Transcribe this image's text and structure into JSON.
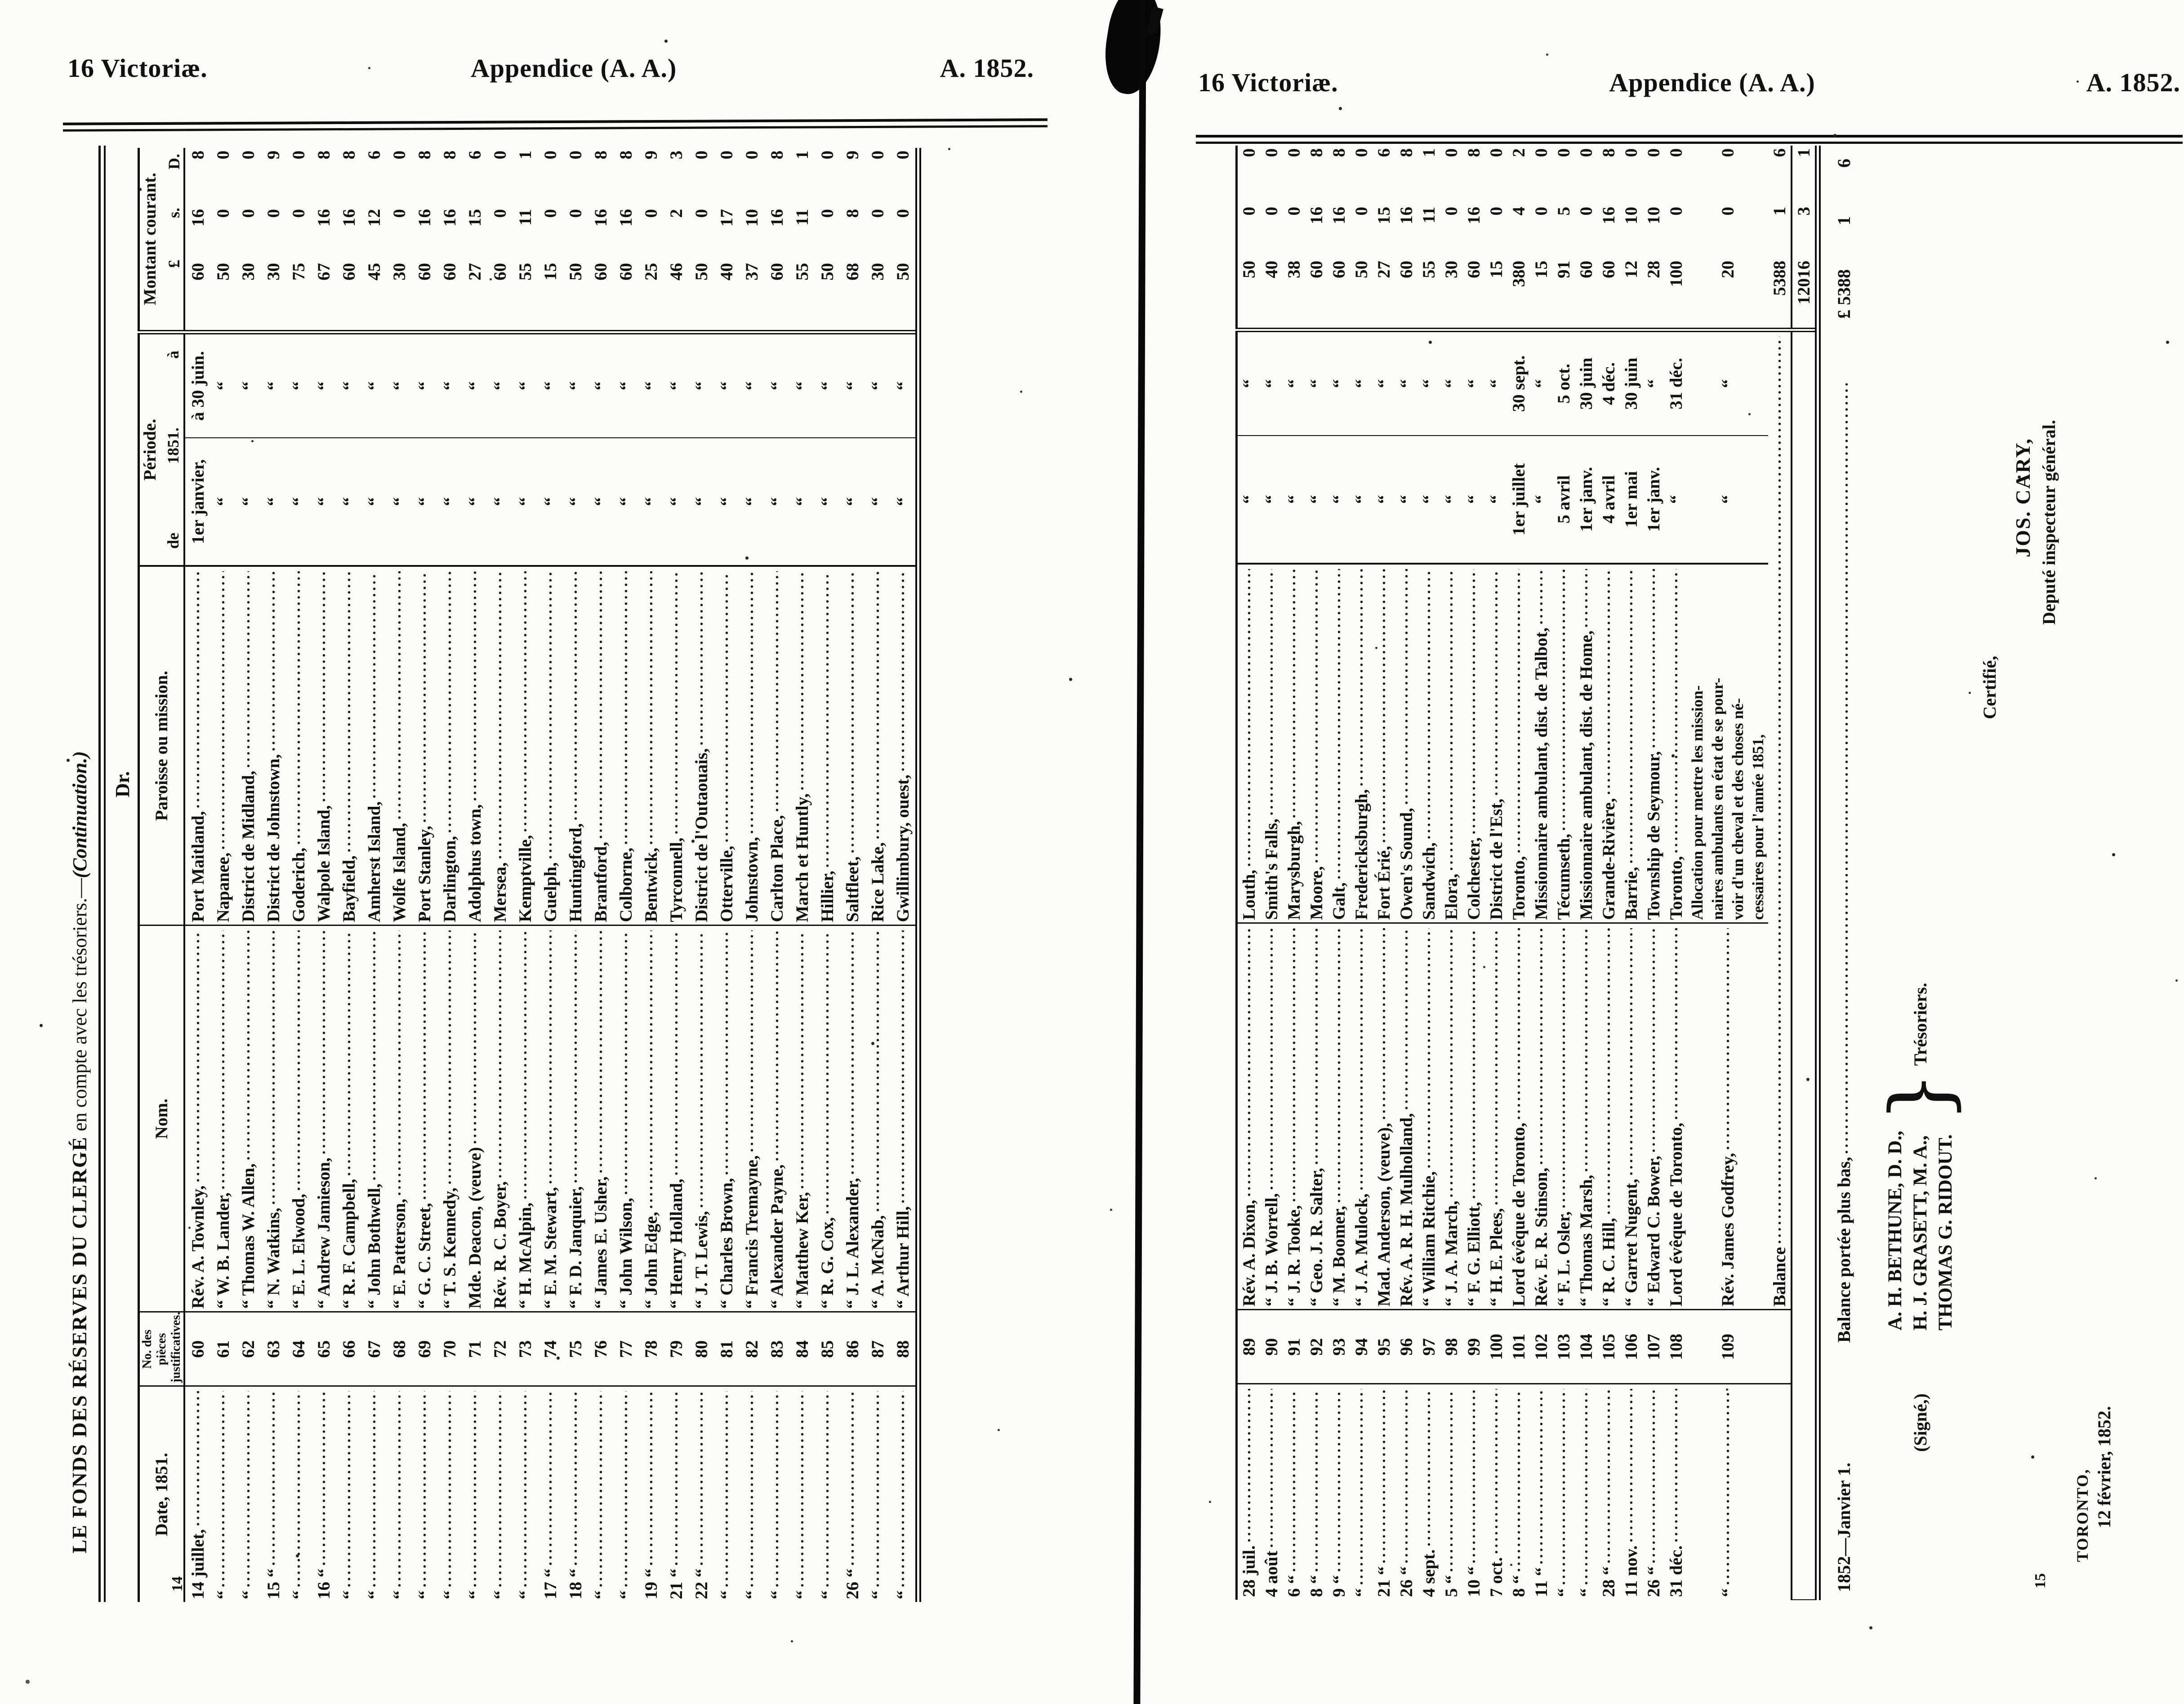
{
  "running_head": {
    "victoriae": "16 Victoriæ.",
    "appendice": "Appendice (A. A.)",
    "year": "A. 1852."
  },
  "left_page": {
    "page_number": "14",
    "caption": {
      "main": "LE FONDS DES RÉSERVES DU CLERGÉ",
      "rest": " en compte avec les trésoriers.—",
      "continuation": "(Continuation.)"
    },
    "dr_label": "Dr.",
    "columns": {
      "date": "Date, 1851.",
      "no_line1": "No. des",
      "no_line2": "pièces",
      "no_line3": "justificatives.",
      "nom": "Nom.",
      "paroisse": "Paroisse ou mission.",
      "periode": "Période.",
      "periode_year": "1851.",
      "de": "de",
      "a": "à",
      "montant": "Montant courant.",
      "pounds": "£",
      "shillings": "s.",
      "pence": "D."
    },
    "rows": [
      [
        "14 juillet,",
        "60",
        "Rév. A. Townley,",
        "Port Maitland,",
        "1er janvier,",
        "à 30 juin.",
        "60",
        "16",
        "8"
      ],
      [
        "“",
        "61",
        "“ W. B. Lander,",
        "Napanee,",
        "“",
        "“",
        "50",
        "0",
        "0"
      ],
      [
        "“",
        "62",
        "“ Thomas W. Allen,",
        "District de Midland,",
        "“",
        "“",
        "30",
        "0",
        "0"
      ],
      [
        "15 “",
        "63",
        "“ N. Watkins,",
        "District de Johnstown,",
        "“",
        "“",
        "30",
        "0",
        "9"
      ],
      [
        "“",
        "64",
        "“ E. L. Elwood,",
        "Goderich,",
        "“",
        "“",
        "75",
        "0",
        "0"
      ],
      [
        "16 “",
        "65",
        "“ Andrew Jamieson,",
        "Walpole Island,",
        "“",
        "“",
        "67",
        "16",
        "8"
      ],
      [
        "“",
        "66",
        "“ R. F. Campbell,",
        "Bayfield,",
        "“",
        "“",
        "60",
        "16",
        "8"
      ],
      [
        "“",
        "67",
        "“ John Bothwell,",
        "Amherst Island,",
        "“",
        "“",
        "45",
        "12",
        "6"
      ],
      [
        "“",
        "68",
        "“ E. Patterson,",
        "Wolfe Island,",
        "“",
        "“",
        "30",
        "0",
        "0"
      ],
      [
        "“",
        "69",
        "“ G. C. Street,",
        "Port Stanley,",
        "“",
        "“",
        "60",
        "16",
        "8"
      ],
      [
        "“",
        "70",
        "“ T. S. Kennedy,",
        "Darlington,",
        "“",
        "“",
        "60",
        "16",
        "8"
      ],
      [
        "“",
        "71",
        "Mde. Deacon, (veuve)",
        "Adolphus town,",
        "“",
        "“",
        "27",
        "15",
        "6"
      ],
      [
        "“",
        "72",
        "Rév. R. C. Boyer,",
        "Mersea,",
        "“",
        "“",
        "60",
        "0",
        "0"
      ],
      [
        "“",
        "73",
        "“ H. McAlpin,",
        "Kemptville,",
        "“",
        "“",
        "55",
        "11",
        "1"
      ],
      [
        "17 “",
        "74",
        "“ E. M. Stewart,",
        "Guelph,",
        "“",
        "“",
        "15",
        "0",
        "0"
      ],
      [
        "18 “",
        "75",
        "“ F. D. Janquier,",
        "Huntingford,",
        "“",
        "“",
        "50",
        "0",
        "0"
      ],
      [
        "“",
        "76",
        "“ James E. Usher,",
        "Brantford,",
        "“",
        "“",
        "60",
        "16",
        "8"
      ],
      [
        "“",
        "77",
        "“ John Wilson,",
        "Colborne,",
        "“",
        "“",
        "60",
        "16",
        "8"
      ],
      [
        "19 “",
        "78",
        "“ John Edge,",
        "Bentwick,",
        "“",
        "“",
        "25",
        "0",
        "9"
      ],
      [
        "21 “",
        "79",
        "“ Henry Holland,",
        "Tyrconnell,",
        "“",
        "“",
        "46",
        "2",
        "3"
      ],
      [
        "22 “",
        "80",
        "“ J. T. Lewis,",
        "District de l'Outaouais,",
        "“",
        "“",
        "50",
        "0",
        "0"
      ],
      [
        "“",
        "81",
        "“ Charles Brown,",
        "Otterville,",
        "“",
        "“",
        "40",
        "17",
        "0"
      ],
      [
        "“",
        "82",
        "“ Francis Tremayne,",
        "Johnstown,",
        "“",
        "“",
        "37",
        "10",
        "0"
      ],
      [
        "“",
        "83",
        "“ Alexander Payne,",
        "Carlton Place,",
        "“",
        "“",
        "60",
        "16",
        "8"
      ],
      [
        "“",
        "84",
        "“ Matthew Ker,",
        "March et Huntly,",
        "“",
        "“",
        "55",
        "11",
        "1"
      ],
      [
        "“",
        "85",
        "“ R. G. Cox,",
        "Hillier,",
        "“",
        "“",
        "50",
        "0",
        "0"
      ],
      [
        "26 “",
        "86",
        "“ J. L. Alexander,",
        "Saltfleet,",
        "“",
        "“",
        "68",
        "8",
        "9"
      ],
      [
        "“",
        "87",
        "“ A. McNab,",
        "Rice Lake,",
        "“",
        "“",
        "30",
        "0",
        "0"
      ],
      [
        "“",
        "88",
        "“ Arthur Hill,",
        "Gwillimbury, ouest,",
        "“",
        "“",
        "50",
        "0",
        "0"
      ]
    ]
  },
  "right_page": {
    "page_number": "15",
    "rows": [
      [
        "28 juil.",
        "89",
        "Rév. A. Dixon,",
        "Louth,",
        "“",
        "“",
        "50",
        "0",
        "0"
      ],
      [
        "4 août",
        "90",
        "“ J. B. Worrell,",
        "Smith's Falls,",
        "“",
        "“",
        "40",
        "0",
        "0"
      ],
      [
        "6 “",
        "91",
        "“ J. R. Tooke,",
        "Marysburgh,",
        "“",
        "“",
        "38",
        "0",
        "0"
      ],
      [
        "8 “",
        "92",
        "“ Geo. J. R. Salter,",
        "Moore,",
        "“",
        "“",
        "60",
        "16",
        "8"
      ],
      [
        "9 “",
        "93",
        "“ M. Boomer,",
        "Galt,",
        "“",
        "“",
        "60",
        "16",
        "8"
      ],
      [
        "“",
        "94",
        "“ J. A. Mulock,",
        "Fredericksburgh,",
        "“",
        "“",
        "50",
        "0",
        "0"
      ],
      [
        "21 “",
        "95",
        "Mad. Anderson, (veuve),",
        "Fort Érié,",
        "“",
        "“",
        "27",
        "15",
        "6"
      ],
      [
        "26 “",
        "96",
        "Rév. A. R. H. Mulholland,",
        "Owen's Sound,",
        "“",
        "“",
        "60",
        "16",
        "8"
      ],
      [
        "4 sept.",
        "97",
        "“ William Ritchie,",
        "Sandwich,",
        "“",
        "“",
        "55",
        "11",
        "1"
      ],
      [
        "5 “",
        "98",
        "“ J. A. March,",
        "Elora,",
        "“",
        "“",
        "30",
        "0",
        "0"
      ],
      [
        "10 “",
        "99",
        "“ F. G. Elliott,",
        "Colchester,",
        "“",
        "“",
        "60",
        "16",
        "8"
      ],
      [
        "7 oct.",
        "100",
        "“ H. E. Plees,",
        "District de l'Est,",
        "“",
        "“",
        "15",
        "0",
        "0"
      ],
      [
        "8 “",
        "101",
        "Lord évêque de Toronto,",
        "Toronto,",
        "1er juillet",
        "30 sept.",
        "380",
        "4",
        "2"
      ],
      [
        "11 “",
        "102",
        "Rév. E. R. Stinson,",
        "Missionnaire ambulant, dist. de Talbot,",
        "“",
        "“",
        "15",
        "0",
        "0"
      ],
      [
        "“",
        "103",
        "“ F. L. Osler,",
        "Técumseth,",
        "5 avril",
        "5 oct.",
        "91",
        "5",
        "0"
      ],
      [
        "“",
        "104",
        "“ Thomas Marsh,",
        "Missionnaire ambulant, dist. de Home,",
        "1er janv.",
        "30 juin",
        "60",
        "0",
        "0"
      ],
      [
        "28 “",
        "105",
        "“ R. C. Hill,",
        "Grande-Rivière,",
        "4 avril",
        "4 déc.",
        "60",
        "16",
        "8"
      ],
      [
        "11 nov.",
        "106",
        "“ Garret Nugent,",
        "Barrie,",
        "1er mai",
        "30 juin",
        "12",
        "10",
        "0"
      ],
      [
        "26 “",
        "107",
        "“ Edward C. Bower,",
        "Township de Seymour,",
        "1er janv.",
        "“",
        "28",
        "10",
        "0"
      ],
      [
        "31 déc.",
        "108",
        "Lord évêque de Toronto,",
        "Toronto,",
        "“",
        "31 déc.",
        "100",
        "0",
        "0"
      ],
      [
        "“",
        "109",
        "Rév. James Godfrey,",
        [
          "Allocation pour mettre les mission-",
          "naires ambulants en état de se pour-",
          "voir d'un cheval et des choses né-",
          "cessaires pour l'année 1851,"
        ],
        "“",
        "“",
        "20",
        "0",
        "0"
      ]
    ],
    "balance_row": {
      "label": "Balance",
      "pounds": "5388",
      "shillings": "1",
      "pence": "6"
    },
    "total_row": {
      "pounds": "12016",
      "shillings": "3",
      "pence": "1"
    },
    "footer": {
      "balance_date": "1852—Janvier 1.",
      "balance_label": "Balance portée plus bas,",
      "balance_pounds": "£ 5388",
      "balance_shillings": "1",
      "balance_pence": "6",
      "signe": "(Signé,)",
      "signatories": [
        "A. H. BETHUNE, D. D.,",
        "H. J. GRASETT, M. A.,",
        "THOMAS G. RIDOUT."
      ],
      "brace": "}",
      "role": "Trésoriers.",
      "certified": "Certifié,",
      "inspector_name": "JOS. CARY,",
      "inspector_title": "Deputé inspecteur général.",
      "place": "TORONTO,",
      "signed_date": "12 février, 1852."
    }
  }
}
